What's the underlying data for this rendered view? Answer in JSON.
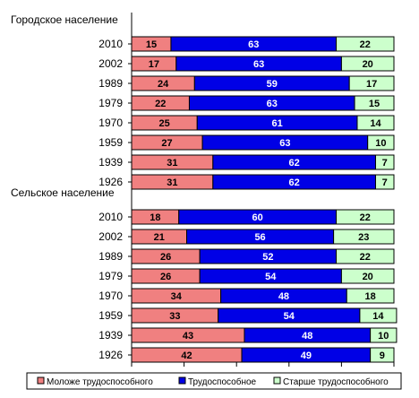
{
  "chart_data": {
    "type": "bar",
    "stacked": true,
    "percent_stacked": true,
    "orientation": "horizontal",
    "xlim": [
      0,
      100
    ],
    "grid": false,
    "legend_position": "bottom",
    "colors": {
      "Моложе трудоспособного": "#f08080",
      "Трудоспособное": "#0000e6",
      "Старше трудоспособного": "#ccffcc"
    },
    "series_names": [
      "Моложе трудоспособного",
      "Трудоспособное",
      "Старше трудоспособного"
    ],
    "groups": [
      {
        "label": "Городское население",
        "rows": [
          {
            "year": "2010",
            "values": [
              15,
              63,
              22
            ]
          },
          {
            "year": "2002",
            "values": [
              17,
              63,
              20
            ]
          },
          {
            "year": "1989",
            "values": [
              24,
              59,
              17
            ]
          },
          {
            "year": "1979",
            "values": [
              22,
              63,
              15
            ]
          },
          {
            "year": "1970",
            "values": [
              25,
              61,
              14
            ]
          },
          {
            "year": "1959",
            "values": [
              27,
              63,
              10
            ]
          },
          {
            "year": "1939",
            "values": [
              31,
              62,
              7
            ]
          },
          {
            "year": "1926",
            "values": [
              31,
              62,
              7
            ]
          }
        ]
      },
      {
        "label": "Сельское население",
        "rows": [
          {
            "year": "2010",
            "values": [
              18,
              60,
              22
            ]
          },
          {
            "year": "2002",
            "values": [
              21,
              56,
              23
            ]
          },
          {
            "year": "1989",
            "values": [
              26,
              52,
              22
            ]
          },
          {
            "year": "1979",
            "values": [
              26,
              54,
              20
            ]
          },
          {
            "year": "1970",
            "values": [
              34,
              48,
              18
            ]
          },
          {
            "year": "1959",
            "values": [
              33,
              54,
              14
            ]
          },
          {
            "year": "1939",
            "values": [
              43,
              48,
              10
            ]
          },
          {
            "year": "1926",
            "values": [
              42,
              49,
              9
            ]
          }
        ]
      }
    ]
  }
}
